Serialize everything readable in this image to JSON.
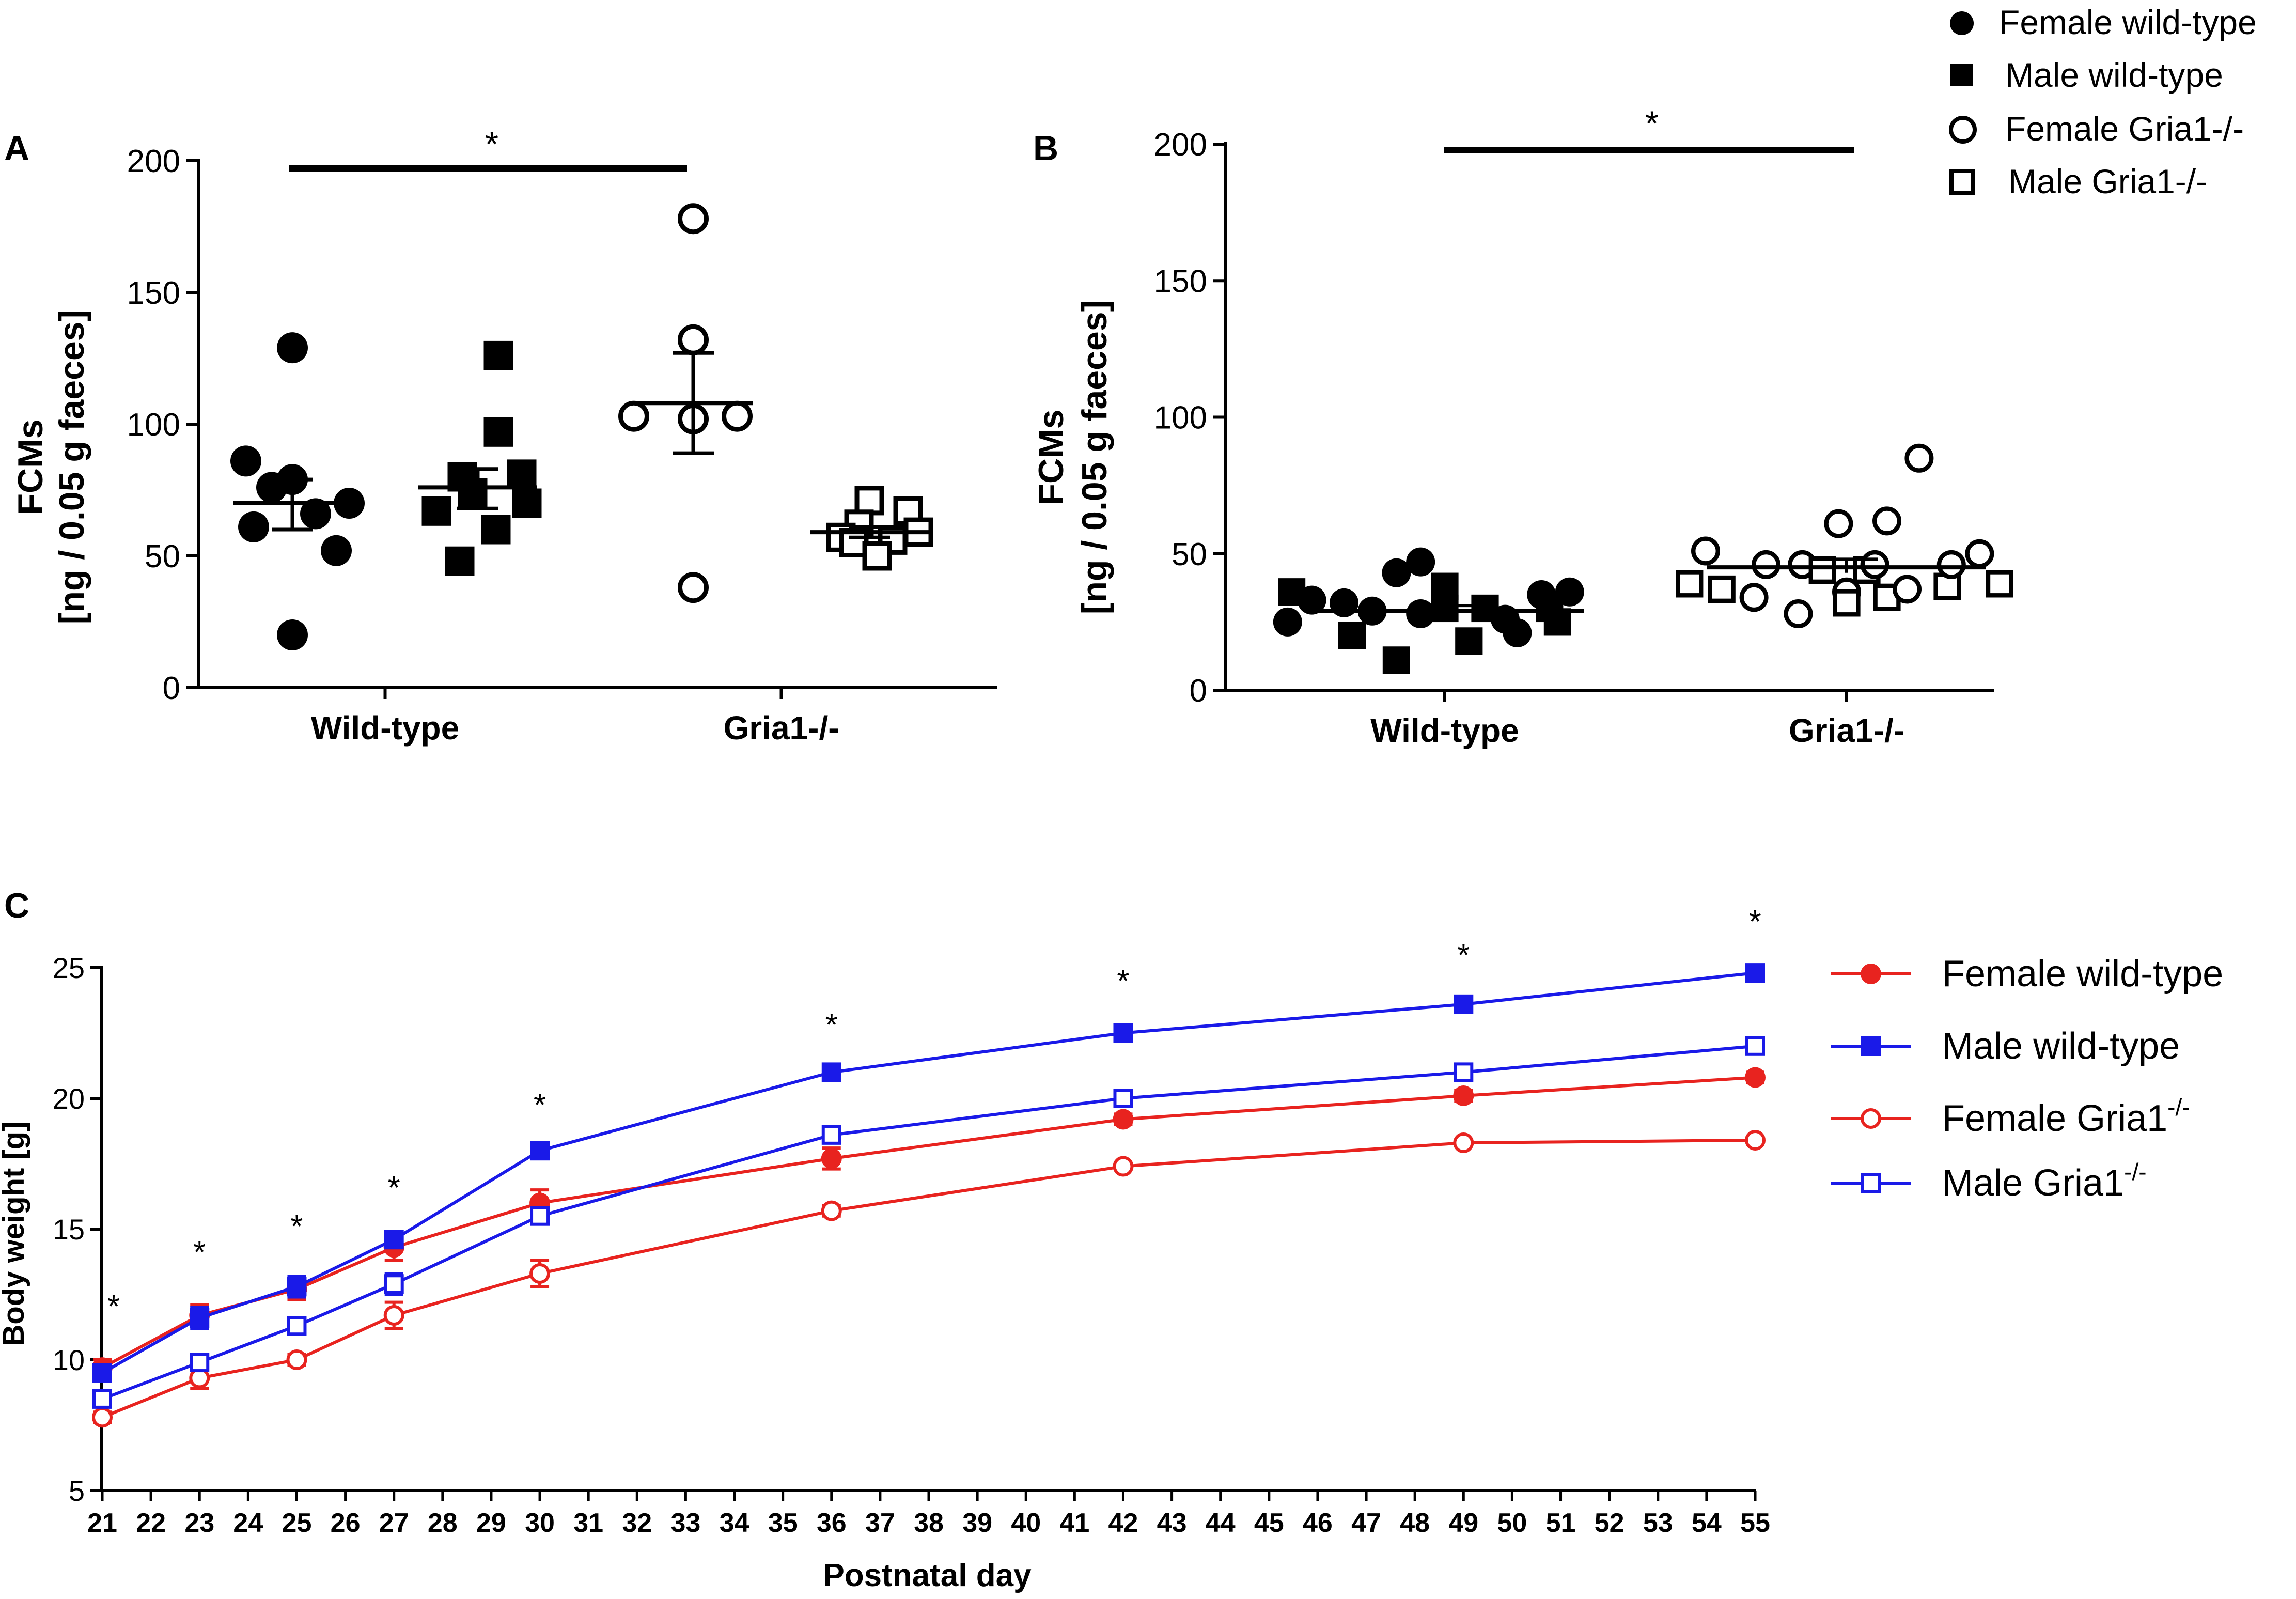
{
  "legend_top": [
    {
      "marker": "filled-circle",
      "label": "Female wild-type"
    },
    {
      "marker": "filled-square",
      "label": "Male wild-type"
    },
    {
      "marker": "open-circle",
      "label": "Female Gria1-/-"
    },
    {
      "marker": "open-square",
      "label": "Male Gria1-/-"
    }
  ],
  "chart_data": [
    {
      "panel": "A",
      "type": "scatter",
      "title": "",
      "ylabel_line1": "FCMs",
      "ylabel_line2": "[ng / 0.05 g faeces]",
      "ylim": [
        0,
        200
      ],
      "yticks": [
        "0",
        "50",
        "100",
        "150",
        "200"
      ],
      "groups": [
        {
          "label": "Wild-type",
          "categories": [
            "Female wild-type",
            "Male wild-type"
          ]
        },
        {
          "label": "Gria1-/-",
          "categories": [
            "Female Gria1-/-",
            "Male Gria1-/-"
          ]
        }
      ],
      "series": [
        {
          "name": "Female wild-type",
          "marker": "filled-circle",
          "values": [
            129,
            86,
            79,
            76,
            70,
            66,
            61,
            52,
            20
          ],
          "mean": 70,
          "sem_low": 60,
          "sem_high": 79
        },
        {
          "name": "Male wild-type",
          "marker": "filled-square",
          "values": [
            126,
            97,
            81,
            80,
            74,
            70,
            67,
            60,
            48
          ],
          "mean": 76,
          "sem_low": 68,
          "sem_high": 83
        },
        {
          "name": "Female Gria1-/-",
          "marker": "open-circle",
          "values": [
            178,
            132,
            103,
            103,
            102,
            38
          ],
          "mean": 108,
          "sem_low": 89,
          "sem_high": 127
        },
        {
          "name": "Male Gria1-/-",
          "marker": "open-square",
          "values": [
            71,
            67,
            62,
            59,
            57,
            56,
            55,
            50
          ],
          "mean": 59,
          "sem_low": 57,
          "sem_high": 61
        }
      ],
      "significance": {
        "from": "Female wild-type",
        "to": "Female Gria1-/-",
        "label": "*"
      }
    },
    {
      "panel": "B",
      "type": "scatter",
      "title": "",
      "ylabel_line1": "FCMs",
      "ylabel_line2": "[ng / 0.05 g faeces]",
      "ylim": [
        0,
        200
      ],
      "yticks": [
        "0",
        "50",
        "100",
        "150",
        "200"
      ],
      "categories": [
        "Wild-type",
        "Gria1-/-"
      ],
      "series": [
        {
          "name": "Wild-type",
          "mean": 29,
          "sem_low": 27,
          "sem_high": 31,
          "points": [
            {
              "marker": "filled-square",
              "dx": -0.38,
              "v": 36
            },
            {
              "marker": "filled-circle",
              "dx": -0.33,
              "v": 33
            },
            {
              "marker": "filled-circle",
              "dx": -0.39,
              "v": 25
            },
            {
              "marker": "filled-square",
              "dx": -0.23,
              "v": 20
            },
            {
              "marker": "filled-circle",
              "dx": -0.25,
              "v": 32
            },
            {
              "marker": "filled-circle",
              "dx": -0.18,
              "v": 29
            },
            {
              "marker": "filled-circle",
              "dx": -0.12,
              "v": 43
            },
            {
              "marker": "filled-circle",
              "dx": -0.06,
              "v": 47
            },
            {
              "marker": "filled-square",
              "dx": -0.12,
              "v": 11
            },
            {
              "marker": "filled-circle",
              "dx": -0.06,
              "v": 28
            },
            {
              "marker": "filled-square",
              "dx": 0.0,
              "v": 38
            },
            {
              "marker": "filled-square",
              "dx": 0.0,
              "v": 30
            },
            {
              "marker": "filled-square",
              "dx": 0.06,
              "v": 18
            },
            {
              "marker": "filled-square",
              "dx": 0.1,
              "v": 30
            },
            {
              "marker": "filled-circle",
              "dx": 0.15,
              "v": 26
            },
            {
              "marker": "filled-circle",
              "dx": 0.18,
              "v": 21
            },
            {
              "marker": "filled-circle",
              "dx": 0.24,
              "v": 35
            },
            {
              "marker": "filled-square",
              "dx": 0.28,
              "v": 25
            },
            {
              "marker": "filled-circle",
              "dx": 0.31,
              "v": 36
            },
            {
              "marker": "filled-square",
              "dx": 0.26,
              "v": 30
            }
          ]
        },
        {
          "name": "Gria1-/-",
          "mean": 45,
          "sem_low": 43,
          "sem_high": 48,
          "points": [
            {
              "marker": "open-square",
              "dx": -0.39,
              "v": 39
            },
            {
              "marker": "open-circle",
              "dx": -0.35,
              "v": 51
            },
            {
              "marker": "open-square",
              "dx": -0.31,
              "v": 37
            },
            {
              "marker": "open-circle",
              "dx": -0.23,
              "v": 34
            },
            {
              "marker": "open-circle",
              "dx": -0.2,
              "v": 46
            },
            {
              "marker": "open-circle",
              "dx": -0.12,
              "v": 28
            },
            {
              "marker": "open-circle",
              "dx": -0.11,
              "v": 46
            },
            {
              "marker": "open-square",
              "dx": -0.06,
              "v": 44
            },
            {
              "marker": "open-circle",
              "dx": -0.02,
              "v": 61
            },
            {
              "marker": "open-circle",
              "dx": 0.0,
              "v": 36
            },
            {
              "marker": "open-square",
              "dx": 0.0,
              "v": 32
            },
            {
              "marker": "open-square",
              "dx": 0.05,
              "v": 44
            },
            {
              "marker": "open-circle",
              "dx": 0.1,
              "v": 62
            },
            {
              "marker": "open-circle",
              "dx": 0.07,
              "v": 46
            },
            {
              "marker": "open-square",
              "dx": 0.1,
              "v": 34
            },
            {
              "marker": "open-circle",
              "dx": 0.15,
              "v": 37
            },
            {
              "marker": "open-circle",
              "dx": 0.18,
              "v": 85
            },
            {
              "marker": "open-square",
              "dx": 0.25,
              "v": 38
            },
            {
              "marker": "open-circle",
              "dx": 0.26,
              "v": 46
            },
            {
              "marker": "open-circle",
              "dx": 0.33,
              "v": 50
            },
            {
              "marker": "open-square",
              "dx": 0.38,
              "v": 39
            }
          ]
        }
      ],
      "significance": {
        "from": "Wild-type",
        "to": "Gria1-/-",
        "label": "*"
      }
    },
    {
      "panel": "C",
      "type": "line",
      "title": "",
      "xlabel": "Postnatal day",
      "ylabel": "Body weight [g]",
      "xlim": [
        21,
        55
      ],
      "ylim": [
        5,
        25
      ],
      "yticks": [
        "5",
        "10",
        "15",
        "20",
        "25"
      ],
      "xticks": [
        "21",
        "22",
        "23",
        "24",
        "25",
        "26",
        "27",
        "28",
        "29",
        "30",
        "31",
        "32",
        "33",
        "34",
        "35",
        "36",
        "37",
        "38",
        "39",
        "40",
        "41",
        "42",
        "43",
        "44",
        "45",
        "46",
        "47",
        "48",
        "49",
        "50",
        "51",
        "52",
        "53",
        "54",
        "55"
      ],
      "x": [
        21,
        23,
        25,
        27,
        30,
        36,
        42,
        49,
        55
      ],
      "series": [
        {
          "name": "Female wild-type",
          "color": "#e8231f",
          "marker": "filled-circle",
          "values": [
            9.7,
            11.7,
            12.7,
            14.3,
            16.0,
            17.7,
            19.2,
            20.1,
            20.8
          ],
          "err": [
            0.3,
            0.4,
            0.4,
            0.5,
            0.5,
            0.4,
            0.2,
            0.2,
            0.2
          ]
        },
        {
          "name": "Male wild-type",
          "color": "#1a1ae8",
          "marker": "filled-square",
          "values": [
            9.5,
            11.6,
            12.8,
            14.6,
            18.0,
            21.0,
            22.5,
            23.6,
            24.8
          ],
          "err": [
            0.3,
            0.4,
            0.4,
            0.3,
            0.2,
            0.3,
            0.2,
            0.2,
            0.2
          ]
        },
        {
          "name": "Female Gria1",
          "color": "#e8231f",
          "marker": "open-circle",
          "values": [
            7.8,
            9.3,
            10.0,
            11.7,
            13.3,
            15.7,
            17.4,
            18.3,
            18.4
          ],
          "err": [
            0.2,
            0.4,
            0.2,
            0.5,
            0.5,
            0.2,
            0.1,
            0.1,
            0.1
          ]
        },
        {
          "name": "Male Gria1",
          "color": "#1a1ae8",
          "marker": "open-square",
          "values": [
            8.5,
            9.9,
            11.3,
            12.9,
            15.5,
            18.6,
            20.0,
            21.0,
            22.0
          ],
          "err": [
            0.3,
            0.3,
            0.2,
            0.4,
            0.3,
            0.2,
            0.2,
            0.2,
            0.2
          ]
        }
      ],
      "significance_marks": [
        {
          "x": 21,
          "label": "*"
        },
        {
          "x": 23,
          "label": "*"
        },
        {
          "x": 25,
          "label": "*"
        },
        {
          "x": 27,
          "label": "*"
        },
        {
          "x": 30,
          "label": "*"
        },
        {
          "x": 36,
          "label": "*"
        },
        {
          "x": 42,
          "label": "*"
        },
        {
          "x": 49,
          "label": "*"
        },
        {
          "x": 55,
          "label": "*"
        }
      ],
      "legend": {
        "placement": "right",
        "items": [
          {
            "label": "Female wild-type",
            "superscript": ""
          },
          {
            "label": "Male wild-type",
            "superscript": ""
          },
          {
            "label": "Female Gria1",
            "superscript": "-/-"
          },
          {
            "label": "Male Gria1",
            "superscript": "-/-"
          }
        ]
      }
    }
  ],
  "panel_letters": [
    "A",
    "B",
    "C"
  ]
}
